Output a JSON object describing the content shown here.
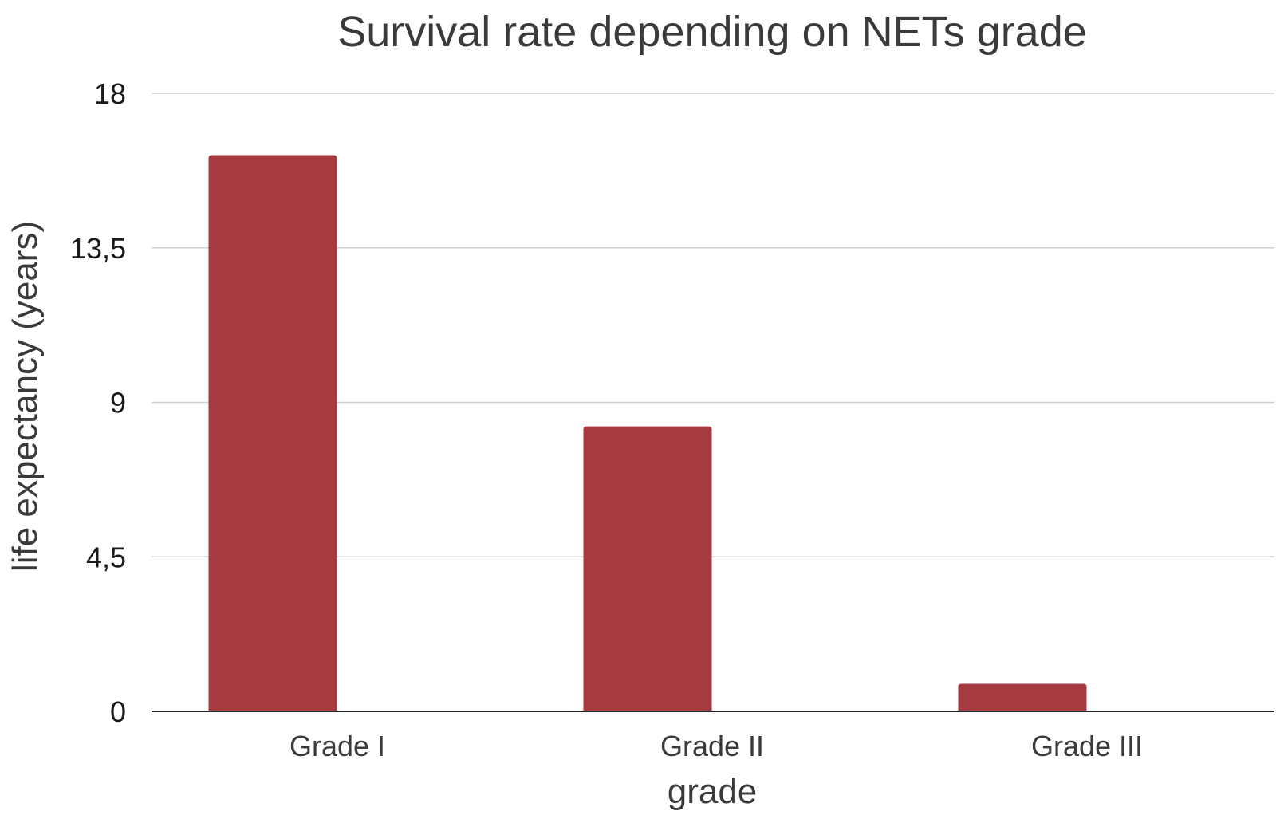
{
  "chart_data": {
    "type": "bar",
    "title": "Survival rate depending on NETs grade",
    "xlabel": "grade",
    "ylabel": "life expectancy (years)",
    "categories": [
      "Grade I",
      "Grade II",
      "Grade III"
    ],
    "values": [
      16.2,
      8.3,
      0.8
    ],
    "ylim": [
      0,
      18
    ],
    "yticks": [
      0,
      4.5,
      9,
      13.5,
      18
    ],
    "ytick_labels": [
      "0",
      "4,5",
      "9",
      "13,5",
      "18"
    ],
    "grid": true,
    "legend": "none",
    "bar_color": "#a63a41"
  }
}
